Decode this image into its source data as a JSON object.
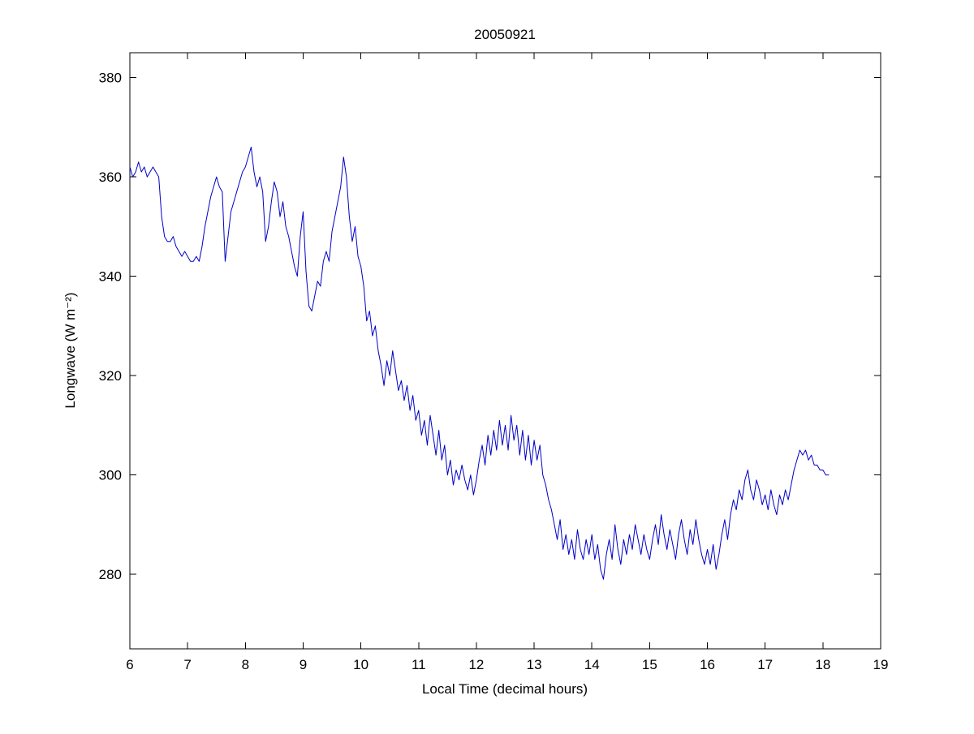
{
  "figure": {
    "background": "#ffffff",
    "axes_color": "#000000"
  },
  "chart_data": {
    "type": "line",
    "title": "20050921",
    "xlabel": "Local Time (decimal hours)",
    "ylabel": "Longwave (W m⁻²)",
    "xlim": [
      6,
      19
    ],
    "ylim": [
      265,
      385
    ],
    "xticks": [
      6,
      7,
      8,
      9,
      10,
      11,
      12,
      13,
      14,
      15,
      16,
      17,
      18,
      19
    ],
    "yticks": [
      280,
      300,
      320,
      340,
      360,
      380
    ],
    "grid": false,
    "legend_position": "none",
    "line_color": "#0000c8",
    "series": [
      {
        "name": "longwave",
        "x_start": 6.0,
        "x_step": 0.05,
        "values": [
          362,
          360,
          361,
          363,
          361,
          362,
          360,
          361,
          362,
          361,
          360,
          352,
          348,
          347,
          347,
          348,
          346,
          345,
          344,
          345,
          344,
          343,
          343,
          344,
          343,
          346,
          350,
          353,
          356,
          358,
          360,
          358,
          357,
          343,
          348,
          353,
          355,
          357,
          359,
          361,
          362,
          364,
          366,
          361,
          358,
          360,
          357,
          347,
          350,
          355,
          359,
          357,
          352,
          355,
          350,
          348,
          345,
          342,
          340,
          348,
          353,
          341,
          334,
          333,
          336,
          339,
          338,
          343,
          345,
          343,
          349,
          352,
          355,
          358,
          364,
          360,
          352,
          347,
          350,
          344,
          342,
          338,
          331,
          333,
          328,
          330,
          325,
          322,
          318,
          323,
          320,
          325,
          321,
          317,
          319,
          315,
          318,
          313,
          316,
          311,
          313,
          308,
          311,
          306,
          312,
          308,
          304,
          309,
          303,
          306,
          300,
          303,
          298,
          301,
          299,
          302,
          299,
          297,
          300,
          296,
          299,
          303,
          306,
          302,
          308,
          304,
          309,
          305,
          311,
          306,
          310,
          305,
          312,
          307,
          310,
          304,
          309,
          303,
          308,
          302,
          307,
          303,
          306,
          300,
          298,
          295,
          293,
          290,
          287,
          291,
          285,
          288,
          284,
          287,
          283,
          289,
          285,
          283,
          287,
          284,
          288,
          283,
          286,
          281,
          279,
          284,
          287,
          283,
          290,
          285,
          282,
          287,
          284,
          288,
          285,
          290,
          287,
          284,
          288,
          285,
          283,
          287,
          290,
          286,
          292,
          288,
          285,
          289,
          286,
          283,
          288,
          291,
          287,
          284,
          289,
          286,
          291,
          287,
          284,
          282,
          285,
          282,
          286,
          281,
          284,
          288,
          291,
          287,
          292,
          295,
          293,
          297,
          295,
          299,
          301,
          297,
          295,
          299,
          297,
          294,
          296,
          293,
          297,
          294,
          292,
          296,
          294,
          297,
          295,
          298,
          301,
          303,
          305,
          304,
          305,
          303,
          304,
          302,
          302,
          301,
          301,
          300,
          300
        ]
      }
    ]
  }
}
